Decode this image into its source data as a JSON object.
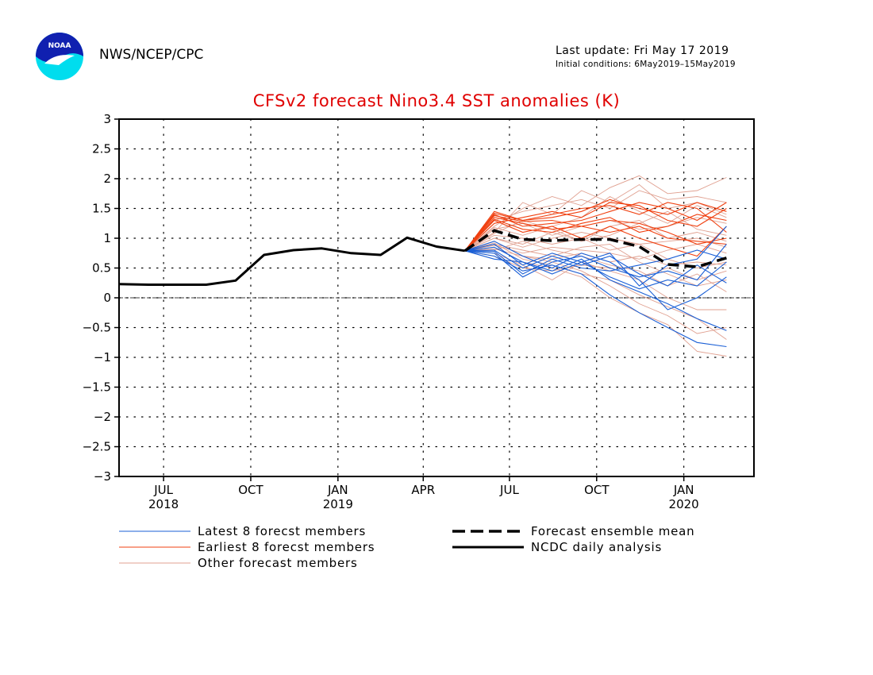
{
  "header": {
    "org": "NWS/NCEP/CPC",
    "last_update": "Last update: Fri May 17 2019",
    "initial_conditions": "Initial conditions: 6May2019–15May2019",
    "logo_text": "NOAA"
  },
  "colors": {
    "title": "#e00000",
    "latest": "#1a5fd6",
    "earliest": "#f04010",
    "other": "#e0a090",
    "analysis": "#000000",
    "mean": "#000000"
  },
  "chart_data": {
    "type": "line",
    "title": "CFSv2 forecast Nino3.4 SST anomalies (K)",
    "ylim": [
      -3,
      3
    ],
    "yticks": [
      3,
      2.5,
      2,
      1.5,
      1,
      0.5,
      0,
      -0.5,
      -1,
      -1.5,
      -2,
      -2.5,
      -3
    ],
    "ytick_labels": [
      "3",
      "2.5",
      "2",
      "1.5",
      "1",
      "0.5",
      "0",
      "−0.5",
      "−1",
      "−1.5",
      "−2",
      "−2.5",
      "−3"
    ],
    "x_range": [
      "2018-05-15",
      "2020-03-15"
    ],
    "xticks": [
      {
        "date": "2018-07-01",
        "label": "JUL",
        "year": "2018"
      },
      {
        "date": "2018-10-01",
        "label": "OCT",
        "year": ""
      },
      {
        "date": "2019-01-01",
        "label": "JAN",
        "year": "2019"
      },
      {
        "date": "2019-04-01",
        "label": "APR",
        "year": ""
      },
      {
        "date": "2019-07-01",
        "label": "JUL",
        "year": ""
      },
      {
        "date": "2019-10-01",
        "label": "OCT",
        "year": ""
      },
      {
        "date": "2020-01-01",
        "label": "JAN",
        "year": "2020"
      }
    ],
    "grid": true,
    "zero_line": true,
    "legend": [
      {
        "label": "Latest 8 forecst members",
        "style": "latest"
      },
      {
        "label": "Earliest 8 forecst members",
        "style": "earliest"
      },
      {
        "label": "Other forecast members",
        "style": "other"
      },
      {
        "label": "Forecast ensemble mean",
        "style": "mean"
      },
      {
        "label": "NCDC daily analysis",
        "style": "analysis"
      }
    ],
    "forecast_dates": [
      "2019-05-15",
      "2019-06-15",
      "2019-07-15",
      "2019-08-15",
      "2019-09-15",
      "2019-10-15",
      "2019-11-15",
      "2019-12-15",
      "2020-01-15",
      "2020-02-15"
    ],
    "analysis": {
      "name": "NCDC daily analysis",
      "x": [
        "2018-05-15",
        "2018-06-15",
        "2018-07-15",
        "2018-08-15",
        "2018-09-15",
        "2018-10-15",
        "2018-11-15",
        "2018-12-15",
        "2019-01-15",
        "2019-02-15",
        "2019-03-15",
        "2019-04-15",
        "2019-05-15"
      ],
      "y": [
        0.23,
        0.22,
        0.22,
        0.22,
        0.29,
        0.72,
        0.8,
        0.83,
        0.75,
        0.72,
        1.01,
        0.86,
        0.79
      ]
    },
    "ensemble_mean": {
      "name": "Forecast ensemble mean",
      "y": [
        0.79,
        1.13,
        0.98,
        0.96,
        0.98,
        0.98,
        0.86,
        0.56,
        0.52,
        0.67
      ]
    },
    "latest_members": [
      [
        0.79,
        0.75,
        0.35,
        0.6,
        0.7,
        0.5,
        0.35,
        0.45,
        0.3,
        0.9
      ],
      [
        0.79,
        0.8,
        0.5,
        0.7,
        0.55,
        0.7,
        0.4,
        0.2,
        0.55,
        0.25
      ],
      [
        0.79,
        0.85,
        0.6,
        0.45,
        0.65,
        0.3,
        0.1,
        -0.1,
        -0.35,
        -0.55
      ],
      [
        0.79,
        0.7,
        0.45,
        0.55,
        0.4,
        0.05,
        -0.25,
        -0.5,
        -0.75,
        -0.82
      ],
      [
        0.79,
        0.9,
        0.55,
        0.75,
        0.6,
        0.75,
        0.2,
        0.55,
        0.65,
        1.2
      ],
      [
        0.79,
        0.78,
        0.4,
        0.65,
        0.5,
        0.45,
        0.55,
        0.65,
        0.8,
        0.65
      ],
      [
        0.79,
        0.95,
        0.7,
        0.5,
        0.75,
        0.6,
        0.3,
        -0.2,
        0.0,
        0.35
      ],
      [
        0.79,
        0.65,
        0.6,
        0.4,
        0.6,
        0.35,
        0.15,
        0.3,
        0.2,
        0.6
      ]
    ],
    "earliest_members": [
      [
        0.79,
        1.45,
        1.3,
        1.35,
        1.45,
        1.65,
        1.5,
        1.4,
        1.6,
        1.45
      ],
      [
        0.79,
        1.4,
        1.2,
        1.25,
        1.3,
        1.45,
        1.6,
        1.5,
        1.3,
        1.6
      ],
      [
        0.79,
        1.35,
        1.25,
        1.15,
        1.2,
        1.3,
        1.25,
        1.1,
        0.9,
        1.0
      ],
      [
        0.79,
        1.42,
        1.3,
        1.4,
        1.5,
        1.55,
        1.4,
        1.6,
        1.5,
        1.1
      ],
      [
        0.79,
        1.3,
        1.1,
        1.2,
        1.0,
        1.2,
        1.0,
        0.85,
        0.7,
        1.2
      ],
      [
        0.79,
        1.38,
        1.28,
        1.3,
        1.2,
        1.1,
        1.2,
        1.0,
        0.95,
        0.9
      ],
      [
        0.79,
        1.25,
        1.35,
        1.45,
        1.35,
        1.6,
        1.55,
        1.3,
        1.2,
        1.5
      ],
      [
        0.79,
        1.32,
        1.15,
        1.1,
        1.25,
        1.35,
        1.1,
        1.2,
        1.4,
        1.3
      ]
    ],
    "other_members": [
      [
        0.79,
        1.2,
        1.5,
        1.7,
        1.55,
        1.85,
        2.05,
        1.75,
        1.8,
        2.02
      ],
      [
        0.79,
        1.1,
        1.6,
        1.4,
        1.8,
        1.6,
        1.9,
        1.5,
        1.6,
        1.4
      ],
      [
        0.79,
        1.0,
        0.9,
        1.1,
        0.95,
        1.2,
        1.3,
        1.0,
        1.1,
        0.95
      ],
      [
        0.79,
        0.9,
        0.8,
        0.7,
        0.85,
        0.9,
        0.6,
        0.4,
        0.2,
        0.3
      ],
      [
        0.79,
        0.85,
        0.6,
        0.5,
        0.35,
        0.0,
        -0.25,
        -0.45,
        -0.9,
        -0.98
      ],
      [
        0.79,
        0.95,
        0.7,
        0.6,
        0.45,
        0.2,
        -0.1,
        -0.3,
        -0.6,
        -0.5
      ],
      [
        0.79,
        1.05,
        1.0,
        0.9,
        1.0,
        0.8,
        0.9,
        0.65,
        0.5,
        0.6
      ],
      [
        0.79,
        0.75,
        0.55,
        0.3,
        0.6,
        0.45,
        0.3,
        0.0,
        -0.2,
        -0.2
      ],
      [
        0.79,
        1.15,
        1.25,
        1.05,
        1.2,
        1.3,
        1.15,
        1.2,
        1.35,
        1.25
      ],
      [
        0.79,
        0.8,
        0.95,
        0.8,
        0.7,
        0.55,
        0.45,
        0.2,
        0.4,
        0.1
      ],
      [
        0.79,
        1.3,
        1.45,
        1.55,
        1.65,
        1.5,
        1.8,
        1.65,
        1.7,
        1.6
      ],
      [
        0.79,
        0.7,
        0.5,
        0.45,
        0.55,
        0.5,
        0.35,
        0.5,
        0.3,
        0.45
      ],
      [
        0.79,
        0.88,
        0.75,
        0.85,
        0.8,
        0.75,
        0.65,
        0.8,
        0.9,
        0.75
      ],
      [
        0.79,
        1.0,
        0.85,
        1.0,
        1.1,
        1.0,
        0.9,
        0.95,
        1.0,
        0.85
      ],
      [
        0.79,
        0.92,
        0.65,
        0.55,
        0.4,
        0.3,
        0.05,
        -0.15,
        -0.35,
        -0.7
      ],
      [
        0.79,
        1.18,
        1.05,
        1.2,
        1.35,
        1.7,
        1.45,
        1.25,
        1.55,
        1.35
      ],
      [
        0.79,
        0.82,
        0.7,
        0.65,
        0.75,
        0.6,
        0.7,
        0.55,
        0.6,
        0.55
      ],
      [
        0.79,
        1.08,
        1.3,
        1.15,
        0.95,
        1.05,
        1.25,
        1.45,
        1.15,
        1.05
      ]
    ]
  }
}
